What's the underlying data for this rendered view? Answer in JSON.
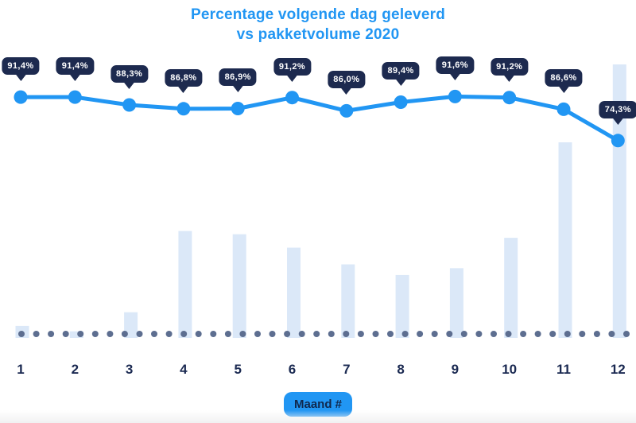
{
  "title": {
    "line1": "Percentage volgende dag geleverd",
    "line2": "vs pakketvolume 2020"
  },
  "xaxis": {
    "badge_label": "Maand #"
  },
  "colors": {
    "accent": "#2196f3",
    "line": "#2196f3",
    "marker": "#2196f3",
    "badge_bg": "#1d2a4f",
    "badge_text": "#ffffff",
    "tick_text": "#1b2a52",
    "baseline_dot": "#5d6e90",
    "bar": "#dbe8f8",
    "maand_text": "#10284d",
    "bottom_fade": "#f1f1f2"
  },
  "chart_data": {
    "type": "line",
    "title": "Percentage volgende dag geleverd vs pakketvolume 2020",
    "xlabel": "Maand #",
    "ylabel": "",
    "categories": [
      "1",
      "2",
      "3",
      "4",
      "5",
      "6",
      "7",
      "8",
      "9",
      "10",
      "11",
      "12"
    ],
    "series": [
      {
        "name": "Percentage volgende dag geleverd",
        "type": "line",
        "unit": "%",
        "values": [
          91.4,
          91.4,
          88.3,
          86.8,
          86.9,
          91.2,
          86.0,
          89.4,
          91.6,
          91.2,
          86.6,
          74.3
        ],
        "labels": [
          "91,4%",
          "91,4%",
          "88,3%",
          "86,8%",
          "86,9%",
          "91,2%",
          "86,0%",
          "89,4%",
          "91,6%",
          "91,2%",
          "86,6%",
          "74,3%"
        ]
      },
      {
        "name": "Pakketvolume 2020",
        "type": "bar",
        "unit": "relative volume (no axis shown, max month = 100)",
        "values": [
          4.4,
          2.4,
          9.4,
          39.1,
          37.9,
          33.0,
          26.9,
          23.0,
          25.5,
          36.6,
          71.5,
          100
        ]
      }
    ],
    "legend": "none",
    "grid": false,
    "layout_hints": {
      "value_labels": "dark tooltip badges above each line point",
      "baseline": "row of small dotted markers along x-axis",
      "xlabel_style": "blue pill badge centered below axis"
    }
  }
}
